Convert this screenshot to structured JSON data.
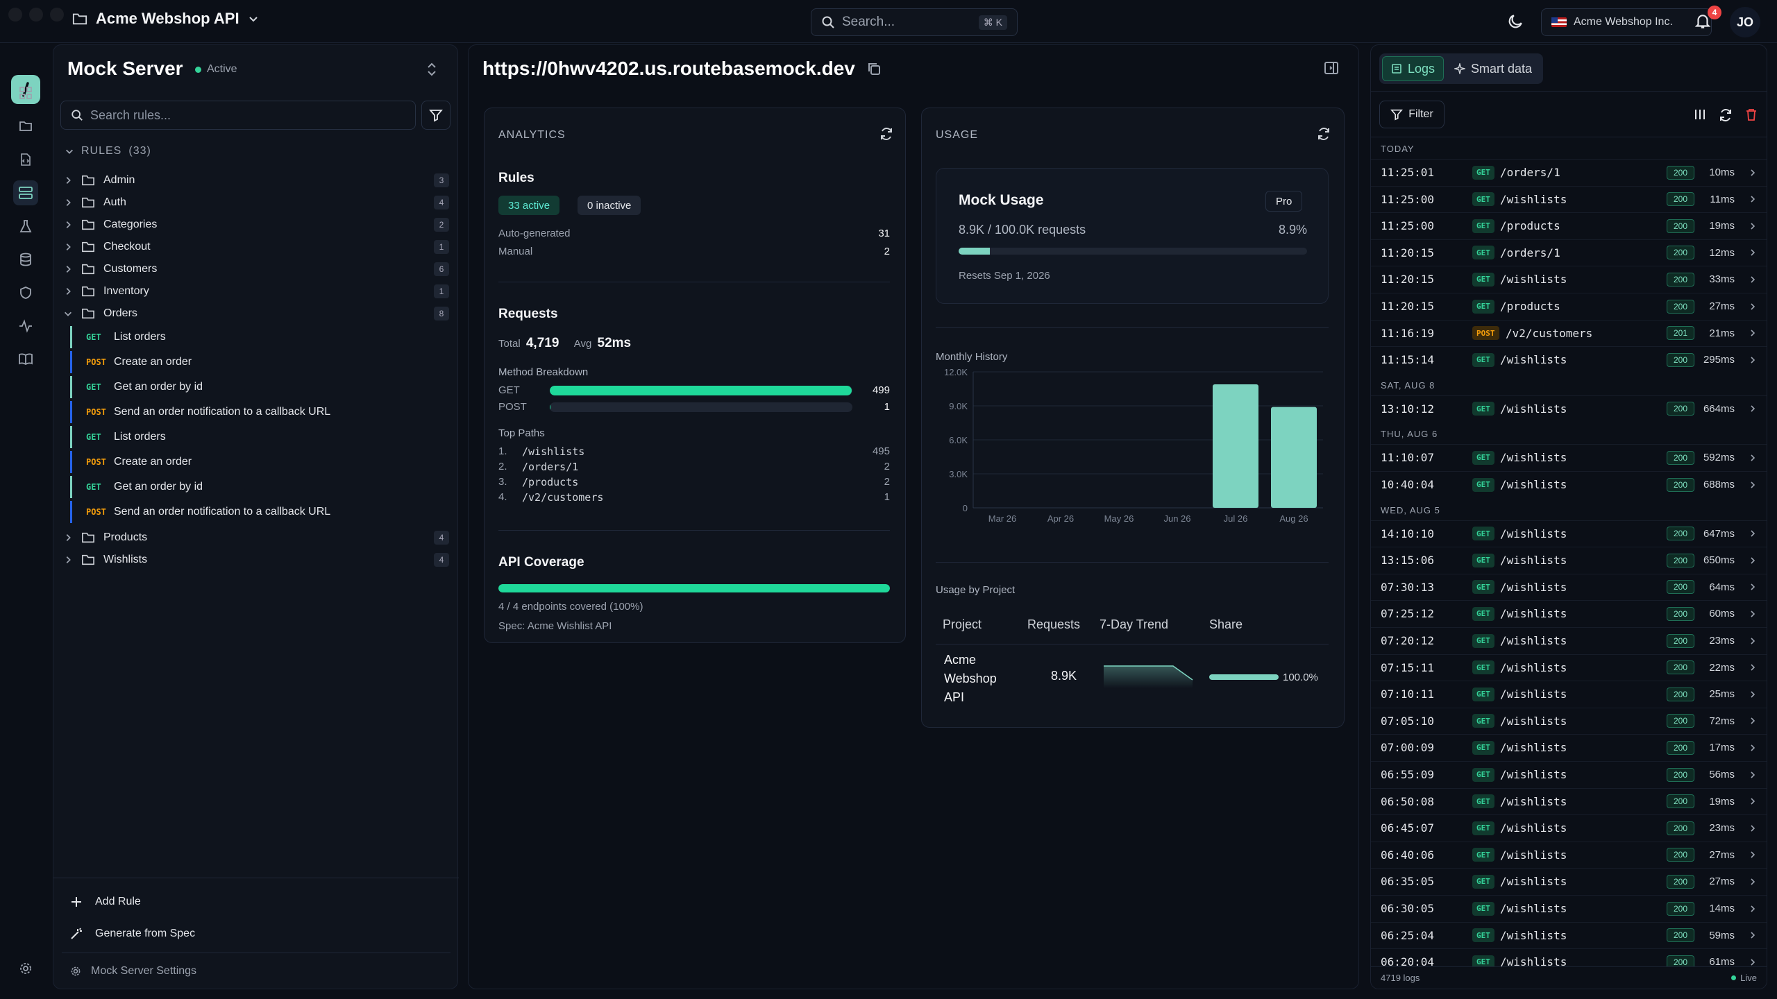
{
  "topbar": {
    "project": "Acme Webshop API",
    "search_placeholder": "Search...",
    "search_shortcut": "⌘ K",
    "org": "Acme Webshop Inc.",
    "notif_count": "4",
    "avatar": "JO"
  },
  "mock": {
    "title": "Mock Server",
    "status": "Active",
    "search_placeholder": "Search rules...",
    "rules_label": "RULES",
    "rules_count": "(33)",
    "folders_before": [
      {
        "name": "Admin",
        "count": "3"
      },
      {
        "name": "Auth",
        "count": "4"
      },
      {
        "name": "Categories",
        "count": "2"
      },
      {
        "name": "Checkout",
        "count": "1"
      },
      {
        "name": "Customers",
        "count": "6"
      },
      {
        "name": "Inventory",
        "count": "1"
      },
      {
        "name": "Orders",
        "count": "8"
      }
    ],
    "rules": [
      {
        "method": "GET",
        "label": "List orders"
      },
      {
        "method": "POST",
        "label": "Create an order"
      },
      {
        "method": "GET",
        "label": "Get an order by id"
      },
      {
        "method": "POST",
        "label": "Send an order notification to a callback URL"
      },
      {
        "method": "GET",
        "label": "List orders"
      },
      {
        "method": "POST",
        "label": "Create an order"
      },
      {
        "method": "GET",
        "label": "Get an order by id"
      },
      {
        "method": "POST",
        "label": "Send an order notification to a callback URL"
      }
    ],
    "folders_after": [
      {
        "name": "Products",
        "count": "4"
      },
      {
        "name": "Wishlists",
        "count": "4"
      }
    ],
    "add_rule": "Add Rule",
    "generate": "Generate from Spec",
    "settings": "Mock Server Settings"
  },
  "main": {
    "url": "https://0hwv4202.us.routebasemock.dev"
  },
  "analytics": {
    "title": "ANALYTICS",
    "rules_title": "Rules",
    "active": "33 active",
    "inactive": "0 inactive",
    "auto_label": "Auto-generated",
    "auto_value": "31",
    "manual_label": "Manual",
    "manual_value": "2",
    "requests_title": "Requests",
    "total_label": "Total",
    "total_value": "4,719",
    "avg_label": "Avg",
    "avg_value": "52ms",
    "breakdown_title": "Method Breakdown",
    "methods": [
      {
        "name": "GET",
        "value": "499",
        "fraction": 0.998
      },
      {
        "name": "POST",
        "value": "1",
        "fraction": 0.002
      }
    ],
    "top_paths_title": "Top Paths",
    "paths": [
      {
        "rank": "1.",
        "path": "/wishlists",
        "count": "495"
      },
      {
        "rank": "2.",
        "path": "/orders/1",
        "count": "2"
      },
      {
        "rank": "3.",
        "path": "/products",
        "count": "2"
      },
      {
        "rank": "4.",
        "path": "/v2/customers",
        "count": "1"
      }
    ],
    "coverage_title": "API Coverage",
    "coverage_fraction": 1.0,
    "coverage_text": "4 / 4 endpoints covered (100%)",
    "spec": "Spec: Acme Wishlist API"
  },
  "usage": {
    "title": "USAGE",
    "mock_usage": "Mock Usage",
    "plan": "Pro",
    "requests": "8.9K / 100.0K requests",
    "percent": "8.9%",
    "fraction": 0.089,
    "resets": "Resets Sep 1, 2026",
    "history_title": "Monthly History",
    "by_project_title": "Usage by Project",
    "cols": [
      "Project",
      "Requests",
      "7-Day Trend",
      "Share"
    ],
    "project_name_lines": [
      "Acme",
      "Webshop",
      "API"
    ],
    "project_requests": "8.9K",
    "project_share": "100.0%",
    "project_share_fraction": 1.0
  },
  "chart_data": {
    "type": "bar",
    "categories": [
      "Mar 26",
      "Apr 26",
      "May 26",
      "Jun 26",
      "Jul 26",
      "Aug 26"
    ],
    "values": [
      0,
      0,
      0,
      0,
      10900,
      8900
    ],
    "ylim": [
      0,
      12000
    ],
    "yticks": [
      "0",
      "3.0K",
      "6.0K",
      "9.0K",
      "12.0K"
    ],
    "ytick_values": [
      0,
      3000,
      6000,
      9000,
      12000
    ],
    "color": "#7dd3c0",
    "grid": true,
    "legend": false,
    "title": "Monthly History",
    "xlabel": "",
    "ylabel": ""
  },
  "logs": {
    "tab_logs": "Logs",
    "tab_smart": "Smart data",
    "filter": "Filter",
    "count_label": "4719 logs",
    "live": "Live",
    "groups": [
      {
        "day": "TODAY",
        "rows": [
          {
            "time": "11:25:01",
            "method": "GET",
            "path": "/orders/1",
            "status": "200",
            "ms": "10ms"
          },
          {
            "time": "11:25:00",
            "method": "GET",
            "path": "/wishlists",
            "status": "200",
            "ms": "11ms"
          },
          {
            "time": "11:25:00",
            "method": "GET",
            "path": "/products",
            "status": "200",
            "ms": "19ms"
          },
          {
            "time": "11:20:15",
            "method": "GET",
            "path": "/orders/1",
            "status": "200",
            "ms": "12ms"
          },
          {
            "time": "11:20:15",
            "method": "GET",
            "path": "/wishlists",
            "status": "200",
            "ms": "33ms"
          },
          {
            "time": "11:20:15",
            "method": "GET",
            "path": "/products",
            "status": "200",
            "ms": "27ms"
          },
          {
            "time": "11:16:19",
            "method": "POST",
            "path": "/v2/customers",
            "status": "201",
            "ms": "21ms"
          },
          {
            "time": "11:15:14",
            "method": "GET",
            "path": "/wishlists",
            "status": "200",
            "ms": "295ms"
          }
        ]
      },
      {
        "day": "SAT, AUG 8",
        "rows": [
          {
            "time": "13:10:12",
            "method": "GET",
            "path": "/wishlists",
            "status": "200",
            "ms": "664ms"
          }
        ]
      },
      {
        "day": "THU, AUG 6",
        "rows": [
          {
            "time": "11:10:07",
            "method": "GET",
            "path": "/wishlists",
            "status": "200",
            "ms": "592ms"
          },
          {
            "time": "10:40:04",
            "method": "GET",
            "path": "/wishlists",
            "status": "200",
            "ms": "688ms"
          }
        ]
      },
      {
        "day": "WED, AUG 5",
        "rows": [
          {
            "time": "14:10:10",
            "method": "GET",
            "path": "/wishlists",
            "status": "200",
            "ms": "647ms"
          },
          {
            "time": "13:15:06",
            "method": "GET",
            "path": "/wishlists",
            "status": "200",
            "ms": "650ms"
          },
          {
            "time": "07:30:13",
            "method": "GET",
            "path": "/wishlists",
            "status": "200",
            "ms": "64ms"
          },
          {
            "time": "07:25:12",
            "method": "GET",
            "path": "/wishlists",
            "status": "200",
            "ms": "60ms"
          },
          {
            "time": "07:20:12",
            "method": "GET",
            "path": "/wishlists",
            "status": "200",
            "ms": "23ms"
          },
          {
            "time": "07:15:11",
            "method": "GET",
            "path": "/wishlists",
            "status": "200",
            "ms": "22ms"
          },
          {
            "time": "07:10:11",
            "method": "GET",
            "path": "/wishlists",
            "status": "200",
            "ms": "25ms"
          },
          {
            "time": "07:05:10",
            "method": "GET",
            "path": "/wishlists",
            "status": "200",
            "ms": "72ms"
          },
          {
            "time": "07:00:09",
            "method": "GET",
            "path": "/wishlists",
            "status": "200",
            "ms": "17ms"
          },
          {
            "time": "06:55:09",
            "method": "GET",
            "path": "/wishlists",
            "status": "200",
            "ms": "56ms"
          },
          {
            "time": "06:50:08",
            "method": "GET",
            "path": "/wishlists",
            "status": "200",
            "ms": "19ms"
          },
          {
            "time": "06:45:07",
            "method": "GET",
            "path": "/wishlists",
            "status": "200",
            "ms": "23ms"
          },
          {
            "time": "06:40:06",
            "method": "GET",
            "path": "/wishlists",
            "status": "200",
            "ms": "27ms"
          },
          {
            "time": "06:35:05",
            "method": "GET",
            "path": "/wishlists",
            "status": "200",
            "ms": "27ms"
          },
          {
            "time": "06:30:05",
            "method": "GET",
            "path": "/wishlists",
            "status": "200",
            "ms": "14ms"
          },
          {
            "time": "06:25:04",
            "method": "GET",
            "path": "/wishlists",
            "status": "200",
            "ms": "59ms"
          },
          {
            "time": "06:20:04",
            "method": "GET",
            "path": "/wishlists",
            "status": "200",
            "ms": "61ms"
          }
        ]
      }
    ]
  }
}
